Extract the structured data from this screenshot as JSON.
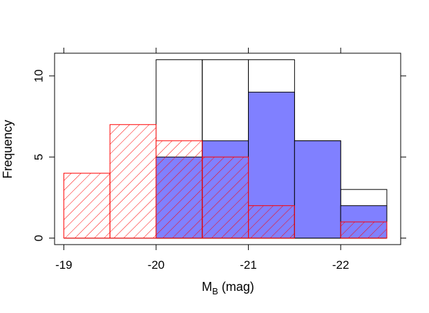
{
  "chart_data": {
    "type": "bar",
    "subtype": "overlaid-histogram",
    "x_bins": [
      {
        "from": -19.0,
        "to": -19.5
      },
      {
        "from": -19.5,
        "to": -20.0
      },
      {
        "from": -20.0,
        "to": -20.5
      },
      {
        "from": -20.5,
        "to": -21.0
      },
      {
        "from": -21.0,
        "to": -21.5
      },
      {
        "from": -21.5,
        "to": -22.0
      },
      {
        "from": -22.0,
        "to": -22.5
      }
    ],
    "series": [
      {
        "style": "outline",
        "color": "#000000",
        "values": [
          0,
          0,
          11,
          11,
          11,
          6,
          3
        ]
      },
      {
        "style": "filled",
        "color": "#8080ff",
        "values": [
          0,
          0,
          5,
          6,
          9,
          6,
          2
        ]
      },
      {
        "style": "hatched",
        "color": "#ff0000",
        "values": [
          4,
          7,
          6,
          5,
          2,
          0,
          1
        ]
      }
    ],
    "xlabel": {
      "main": "M",
      "sub": "B",
      "unit": " (mag)"
    },
    "ylabel": "Frequency",
    "xlim": [
      -18.9,
      -22.65
    ],
    "ylim": [
      -0.4,
      11.4
    ],
    "x_axis_reversed": true,
    "xticks": [
      -19,
      -20,
      -21,
      -22
    ],
    "xtick_labels": [
      "-19",
      "-20",
      "-21",
      "-22"
    ],
    "yticks": [
      0,
      5,
      10
    ],
    "ytick_labels": [
      "0",
      "5",
      "10"
    ],
    "grid": false,
    "legend": "none"
  }
}
